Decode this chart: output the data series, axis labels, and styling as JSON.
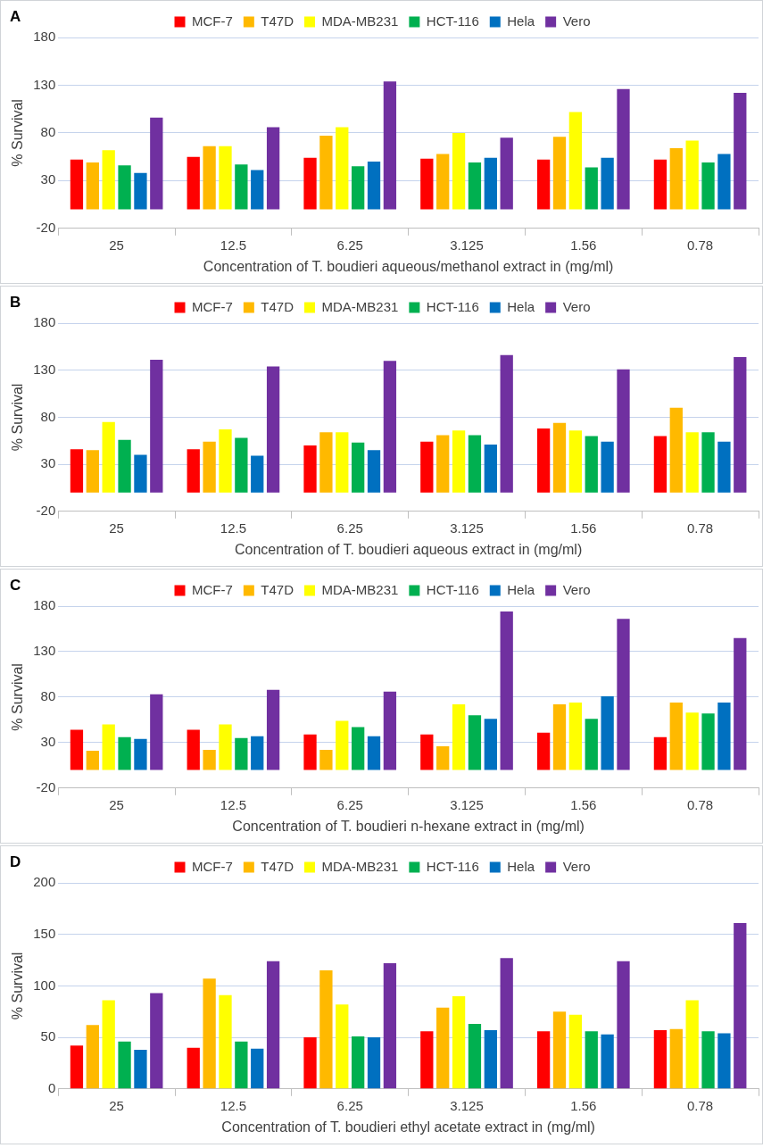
{
  "chart_data": [
    {
      "type": "bar",
      "title": "A",
      "xlabel": "Concentration of T. boudieri aqueous/methanol extract in (mg/ml)",
      "ylabel": "% Survival",
      "categories": [
        "25",
        "12.5",
        "6.25",
        "3.125",
        "1.56",
        "0.78"
      ],
      "series": [
        {
          "name": "MCF-7",
          "color": "#ff0000",
          "values": [
            52,
            55,
            54,
            53,
            52,
            52
          ]
        },
        {
          "name": "T47D",
          "color": "#ffb900",
          "values": [
            49,
            66,
            77,
            58,
            76,
            64
          ]
        },
        {
          "name": "MDA-MB231",
          "color": "#ffff00",
          "values": [
            62,
            66,
            86,
            80,
            102,
            72
          ]
        },
        {
          "name": "HCT-116",
          "color": "#00b050",
          "values": [
            46,
            47,
            45,
            49,
            44,
            49
          ]
        },
        {
          "name": "Hela",
          "color": "#0070c0",
          "values": [
            38,
            41,
            50,
            54,
            54,
            58
          ]
        },
        {
          "name": "Vero",
          "color": "#7030a0",
          "values": [
            96,
            86,
            134,
            75,
            126,
            122
          ]
        }
      ],
      "ylim": [
        -20,
        180
      ],
      "yticks": [
        -20,
        30,
        80,
        130,
        180
      ],
      "grid": "y",
      "legend": "top"
    },
    {
      "type": "bar",
      "title": "B",
      "xlabel": "Concentration of T. boudieri aqueous extract in (mg/ml)",
      "ylabel": "% Survival",
      "categories": [
        "25",
        "12.5",
        "6.25",
        "3.125",
        "1.56",
        "0.78"
      ],
      "series": [
        {
          "name": "MCF-7",
          "color": "#ff0000",
          "values": [
            46,
            46,
            50,
            54,
            68,
            60
          ]
        },
        {
          "name": "T47D",
          "color": "#ffb900",
          "values": [
            45,
            54,
            64,
            61,
            74,
            90
          ]
        },
        {
          "name": "MDA-MB231",
          "color": "#ffff00",
          "values": [
            75,
            67,
            64,
            66,
            66,
            64
          ]
        },
        {
          "name": "HCT-116",
          "color": "#00b050",
          "values": [
            56,
            58,
            53,
            61,
            60,
            64
          ]
        },
        {
          "name": "Hela",
          "color": "#0070c0",
          "values": [
            40,
            39,
            45,
            51,
            54,
            54
          ]
        },
        {
          "name": "Vero",
          "color": "#7030a0",
          "values": [
            141,
            134,
            140,
            146,
            131,
            144
          ]
        }
      ],
      "ylim": [
        -20,
        180
      ],
      "yticks": [
        -20,
        30,
        80,
        130,
        180
      ],
      "grid": "y",
      "legend": "top"
    },
    {
      "type": "bar",
      "title": "C",
      "xlabel": "Concentration of T. boudieri n-hexane extract in (mg/ml)",
      "ylabel": "% Survival",
      "categories": [
        "25",
        "12.5",
        "6.25",
        "3.125",
        "1.56",
        "0.78"
      ],
      "series": [
        {
          "name": "MCF-7",
          "color": "#ff0000",
          "values": [
            44,
            44,
            39,
            39,
            41,
            36
          ]
        },
        {
          "name": "T47D",
          "color": "#ffb900",
          "values": [
            21,
            22,
            22,
            26,
            72,
            74
          ]
        },
        {
          "name": "MDA-MB231",
          "color": "#ffff00",
          "values": [
            50,
            50,
            54,
            72,
            74,
            63
          ]
        },
        {
          "name": "HCT-116",
          "color": "#00b050",
          "values": [
            36,
            35,
            47,
            60,
            56,
            62
          ]
        },
        {
          "name": "Hela",
          "color": "#0070c0",
          "values": [
            34,
            37,
            37,
            56,
            81,
            74
          ]
        },
        {
          "name": "Vero",
          "color": "#7030a0",
          "values": [
            83,
            88,
            86,
            174,
            166,
            145
          ]
        }
      ],
      "ylim": [
        -20,
        180
      ],
      "yticks": [
        -20,
        30,
        80,
        130,
        180
      ],
      "grid": "y",
      "legend": "top"
    },
    {
      "type": "bar",
      "title": "D",
      "xlabel": "Concentration of T. boudieri ethyl acetate extract in (mg/ml)",
      "ylabel": "% Survival",
      "categories": [
        "25",
        "12.5",
        "6.25",
        "3.125",
        "1.56",
        "0.78"
      ],
      "series": [
        {
          "name": "MCF-7",
          "color": "#ff0000",
          "values": [
            42,
            40,
            50,
            56,
            56,
            57
          ]
        },
        {
          "name": "T47D",
          "color": "#ffb900",
          "values": [
            62,
            107,
            115,
            79,
            75,
            58
          ]
        },
        {
          "name": "MDA-MB231",
          "color": "#ffff00",
          "values": [
            86,
            91,
            82,
            90,
            72,
            86
          ]
        },
        {
          "name": "HCT-116",
          "color": "#00b050",
          "values": [
            46,
            46,
            51,
            63,
            56,
            56
          ]
        },
        {
          "name": "Hela",
          "color": "#0070c0",
          "values": [
            38,
            39,
            50,
            57,
            53,
            54
          ]
        },
        {
          "name": "Vero",
          "color": "#7030a0",
          "values": [
            93,
            124,
            122,
            127,
            124,
            161
          ]
        }
      ],
      "ylim": [
        0,
        200
      ],
      "yticks": [
        0,
        50,
        100,
        150,
        200
      ],
      "grid": "y",
      "legend": "top"
    }
  ]
}
